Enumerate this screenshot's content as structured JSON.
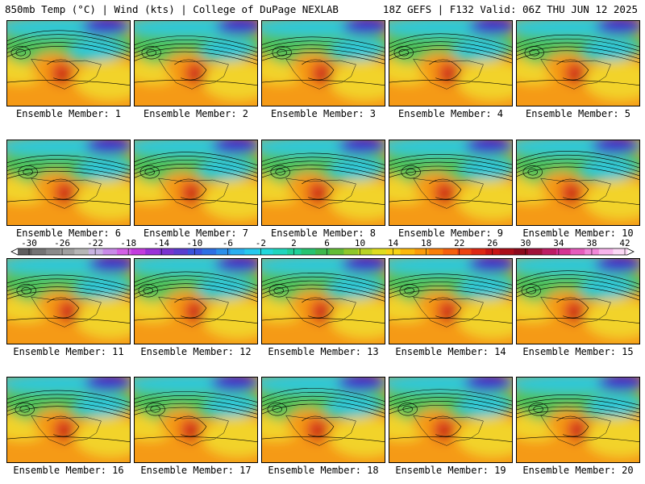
{
  "header": {
    "left": "850mb Temp (°C) | Wind (kts) | College of DuPage NEXLAB",
    "right": "18Z GEFS | F132 Valid: 06Z THU JUN 12 2025"
  },
  "panels": [
    {
      "label": "Ensemble Member: 1"
    },
    {
      "label": "Ensemble Member: 2"
    },
    {
      "label": "Ensemble Member: 3"
    },
    {
      "label": "Ensemble Member: 4"
    },
    {
      "label": "Ensemble Member: 5"
    },
    {
      "label": "Ensemble Member: 6"
    },
    {
      "label": "Ensemble Member: 7"
    },
    {
      "label": "Ensemble Member: 8"
    },
    {
      "label": "Ensemble Member: 9"
    },
    {
      "label": "Ensemble Member: 10"
    },
    {
      "label": "Ensemble Member: 11"
    },
    {
      "label": "Ensemble Member: 12"
    },
    {
      "label": "Ensemble Member: 13"
    },
    {
      "label": "Ensemble Member: 14"
    },
    {
      "label": "Ensemble Member: 15"
    },
    {
      "label": "Ensemble Member: 16"
    },
    {
      "label": "Ensemble Member: 17"
    },
    {
      "label": "Ensemble Member: 18"
    },
    {
      "label": "Ensemble Member: 19"
    },
    {
      "label": "Ensemble Member: 20"
    }
  ],
  "colorbar": {
    "ticks": [
      "-30",
      "-26",
      "-22",
      "-18",
      "-14",
      "-10",
      "-6",
      "-2",
      "2",
      "6",
      "10",
      "14",
      "18",
      "22",
      "26",
      "30",
      "34",
      "38",
      "42"
    ],
    "colors": [
      "#5e5e5e",
      "#747474",
      "#8a8a8a",
      "#a0a0a0",
      "#b6b6b6",
      "#c9b3e3",
      "#c98ae8",
      "#d45fe6",
      "#c33bde",
      "#9a30d8",
      "#7a34d0",
      "#5b3ed0",
      "#3a52dc",
      "#2d6fe4",
      "#2b8fea",
      "#29aef0",
      "#27c8ee",
      "#22d8dc",
      "#1fd6bd",
      "#1ed098",
      "#26c370",
      "#3db84c",
      "#63bc36",
      "#8fc72c",
      "#b9d324",
      "#dfdc1e",
      "#f6d314",
      "#fbb80c",
      "#fb9c0a",
      "#fa7f0a",
      "#f5600e",
      "#ec4312",
      "#dd2814",
      "#c81416",
      "#aa0e18",
      "#8c0a1c",
      "#a0123a",
      "#bd1d64",
      "#d63292",
      "#e65cbc",
      "#f087d8",
      "#f8b4ec",
      "#fcd8f6"
    ]
  },
  "map_colors": {
    "cold": "#3a2bd0",
    "cool": "#2fc8d8",
    "mild": "#4fc25a",
    "warm": "#f2d32a",
    "hot": "#f59a12",
    "veryhot": "#e0401a",
    "extreme": "#b01416"
  }
}
